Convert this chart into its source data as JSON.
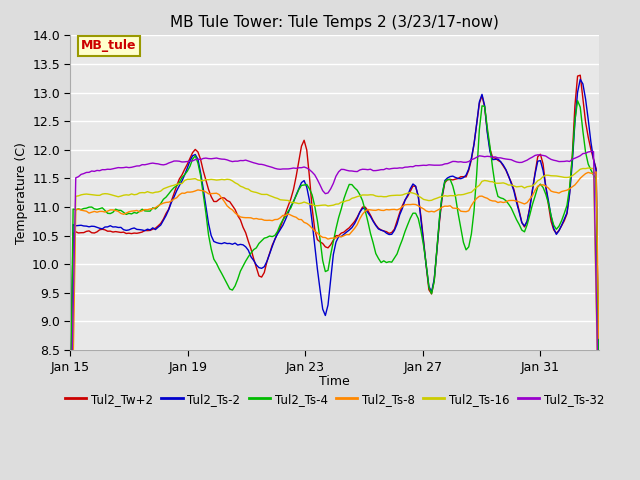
{
  "title": "MB Tule Tower: Tule Temps 2 (3/23/17-now)",
  "xlabel": "Time",
  "ylabel": "Temperature (C)",
  "ylim": [
    8.5,
    14.0
  ],
  "yticks": [
    8.5,
    9.0,
    9.5,
    10.0,
    10.5,
    11.0,
    11.5,
    12.0,
    12.5,
    13.0,
    13.5,
    14.0
  ],
  "bg_color": "#dddddd",
  "plot_bg_color": "#e8e8e8",
  "grid_color": "#ffffff",
  "legend_label": "MB_tule",
  "legend_bg": "#ffffcc",
  "legend_edge": "#999900",
  "series": [
    {
      "name": "Tul2_Tw+2",
      "color": "#cc0000"
    },
    {
      "name": "Tul2_Ts-2",
      "color": "#0000cc"
    },
    {
      "name": "Tul2_Ts-4",
      "color": "#00bb00"
    },
    {
      "name": "Tul2_Ts-8",
      "color": "#ff8800"
    },
    {
      "name": "Tul2_Ts-16",
      "color": "#cccc00"
    },
    {
      "name": "Tul2_Ts-32",
      "color": "#9900cc"
    }
  ],
  "xtick_days": [
    15,
    19,
    23,
    27,
    31
  ],
  "xtick_labels": [
    "Jan 15",
    "Jan 19",
    "Jan 23",
    "Jan 27",
    "Jan 31"
  ]
}
